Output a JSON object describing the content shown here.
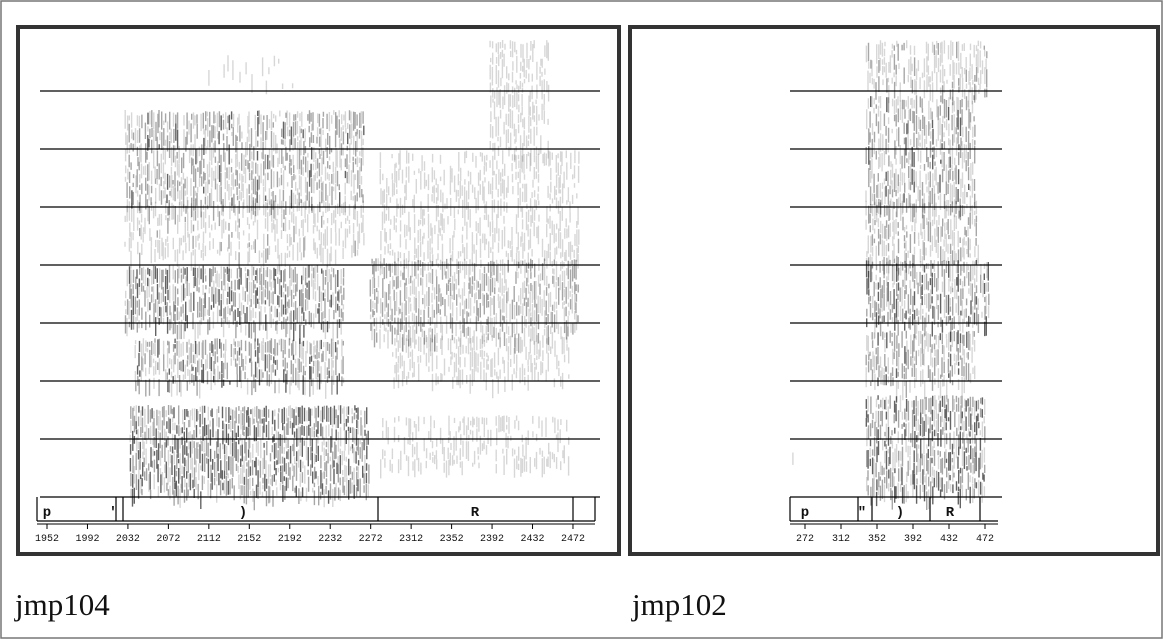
{
  "panels": [
    {
      "caption": "jmp104",
      "segments": [
        "p",
        "'",
        ")",
        "R"
      ],
      "time_ticks": [
        1952,
        1992,
        2032,
        2072,
        2112,
        2152,
        2192,
        2232,
        2272,
        2312,
        2352,
        2392,
        2432,
        2472
      ]
    },
    {
      "caption": "jmp102",
      "segments": [
        "p",
        "\"",
        ")",
        "R"
      ],
      "time_ticks": [
        272,
        312,
        352,
        392,
        432,
        472
      ]
    }
  ]
}
